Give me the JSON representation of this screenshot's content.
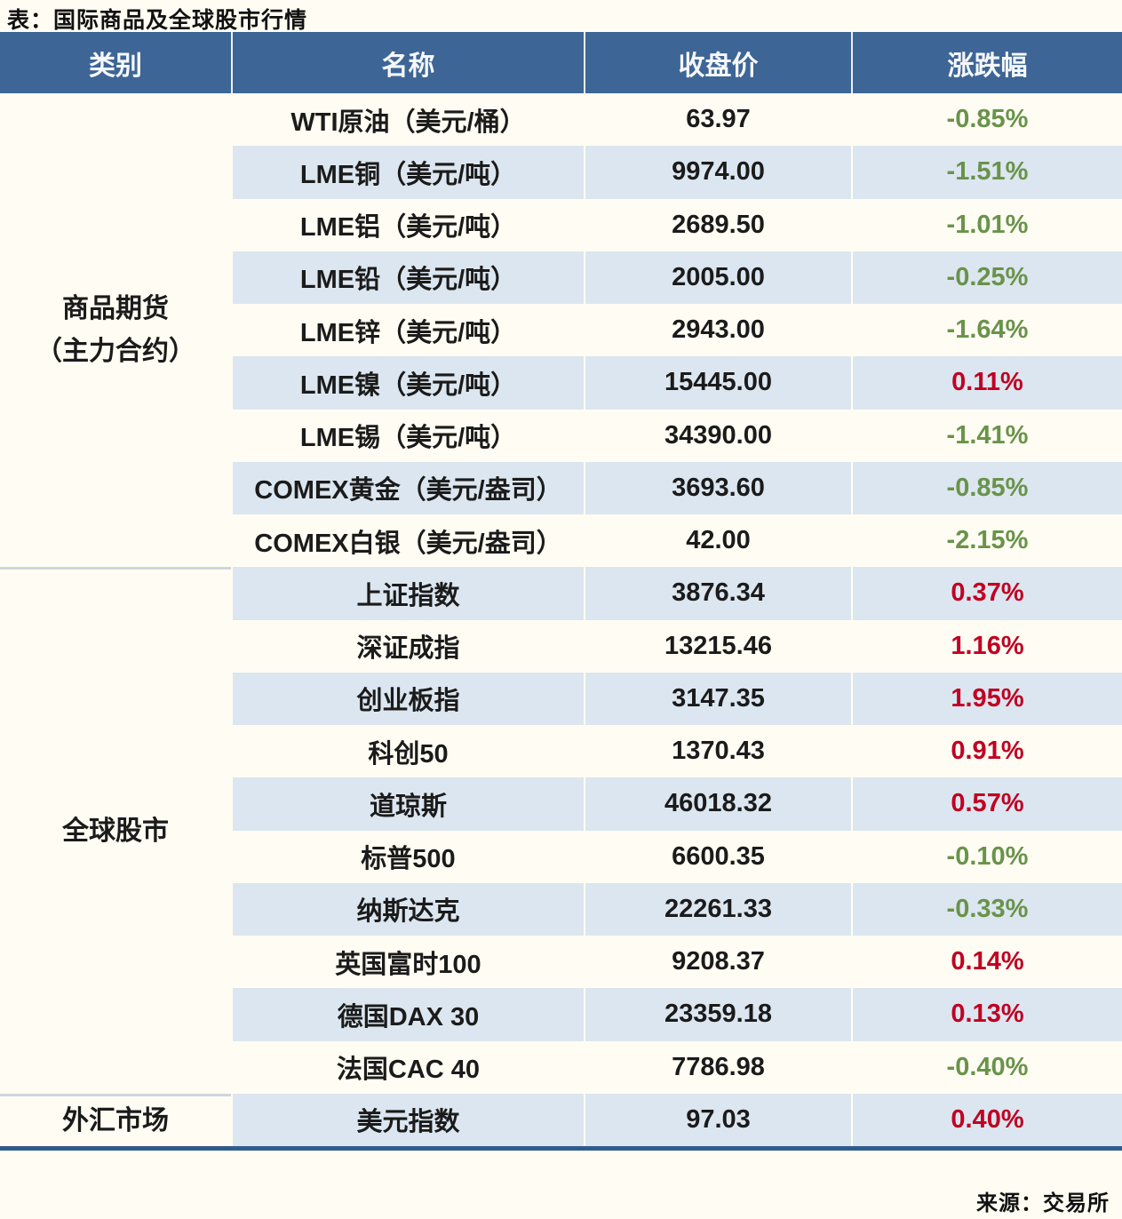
{
  "colors": {
    "header_bg": "#3d6595",
    "header_text": "#f5f7fa",
    "row_plain": "#fffdf3",
    "row_alt": "#dce6f0",
    "up_red": "#c00022",
    "down_green": "#69934a",
    "table_border": "#2e5c8c",
    "section_line": "#ccd6e0"
  },
  "chart_data": {
    "type": "table",
    "title": "表：国际商品及全球股市行情",
    "source": "来源：交易所",
    "columns": [
      "类别",
      "名称",
      "收盘价",
      "涨跌幅"
    ],
    "legend_note": "negative change shown green, positive change shown red",
    "groups": [
      {
        "category": "商品期货（主力合约）",
        "category_lines": [
          "商品期货",
          "（主力合约）"
        ],
        "rows": [
          {
            "name": "WTI原油（美元/桶）",
            "close": "63.97",
            "change": "-0.85%"
          },
          {
            "name": "LME铜（美元/吨）",
            "close": "9974.00",
            "change": "-1.51%"
          },
          {
            "name": "LME铝（美元/吨）",
            "close": "2689.50",
            "change": "-1.01%"
          },
          {
            "name": "LME铅（美元/吨）",
            "close": "2005.00",
            "change": "-0.25%"
          },
          {
            "name": "LME锌（美元/吨）",
            "close": "2943.00",
            "change": "-1.64%"
          },
          {
            "name": "LME镍（美元/吨）",
            "close": "15445.00",
            "change": "0.11%"
          },
          {
            "name": "LME锡（美元/吨）",
            "close": "34390.00",
            "change": "-1.41%"
          },
          {
            "name": "COMEX黄金（美元/盎司）",
            "close": "3693.60",
            "change": "-0.85%"
          },
          {
            "name": "COMEX白银（美元/盎司）",
            "close": "42.00",
            "change": "-2.15%"
          }
        ]
      },
      {
        "category": "全球股市",
        "category_lines": [
          "全球股市"
        ],
        "rows": [
          {
            "name": "上证指数",
            "close": "3876.34",
            "change": "0.37%"
          },
          {
            "name": "深证成指",
            "close": "13215.46",
            "change": "1.16%"
          },
          {
            "name": "创业板指",
            "close": "3147.35",
            "change": "1.95%"
          },
          {
            "name": "科创50",
            "close": "1370.43",
            "change": "0.91%"
          },
          {
            "name": "道琼斯",
            "close": "46018.32",
            "change": "0.57%"
          },
          {
            "name": "标普500",
            "close": "6600.35",
            "change": "-0.10%"
          },
          {
            "name": "纳斯达克",
            "close": "22261.33",
            "change": "-0.33%"
          },
          {
            "name": "英国富时100",
            "close": "9208.37",
            "change": "0.14%"
          },
          {
            "name": "德国DAX 30",
            "close": "23359.18",
            "change": "0.13%"
          },
          {
            "name": "法国CAC 40",
            "close": "7786.98",
            "change": "-0.40%"
          }
        ]
      },
      {
        "category": "外汇市场",
        "category_lines": [
          "外汇市场"
        ],
        "rows": [
          {
            "name": "美元指数",
            "close": "97.03",
            "change": "0.40%"
          }
        ]
      }
    ]
  }
}
